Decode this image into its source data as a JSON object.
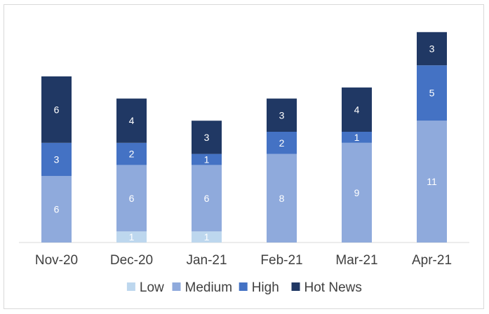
{
  "chart_data": {
    "type": "bar",
    "stacked": true,
    "categories": [
      "Nov-20",
      "Dec-20",
      "Jan-21",
      "Feb-21",
      "Mar-21",
      "Apr-21"
    ],
    "series": [
      {
        "name": "Low",
        "color": "#bdd7ee",
        "values": [
          0,
          1,
          1,
          0,
          0,
          0
        ]
      },
      {
        "name": "Medium",
        "color": "#8faadc",
        "values": [
          6,
          6,
          6,
          8,
          9,
          11
        ]
      },
      {
        "name": "High",
        "color": "#4472c4",
        "values": [
          3,
          2,
          1,
          2,
          1,
          5
        ]
      },
      {
        "name": "Hot News",
        "color": "#203864",
        "values": [
          6,
          4,
          3,
          3,
          4,
          3
        ]
      }
    ],
    "title": "",
    "xlabel": "",
    "ylabel": "",
    "ylim": [
      0,
      19
    ],
    "grid": false,
    "legend": "bottom"
  }
}
